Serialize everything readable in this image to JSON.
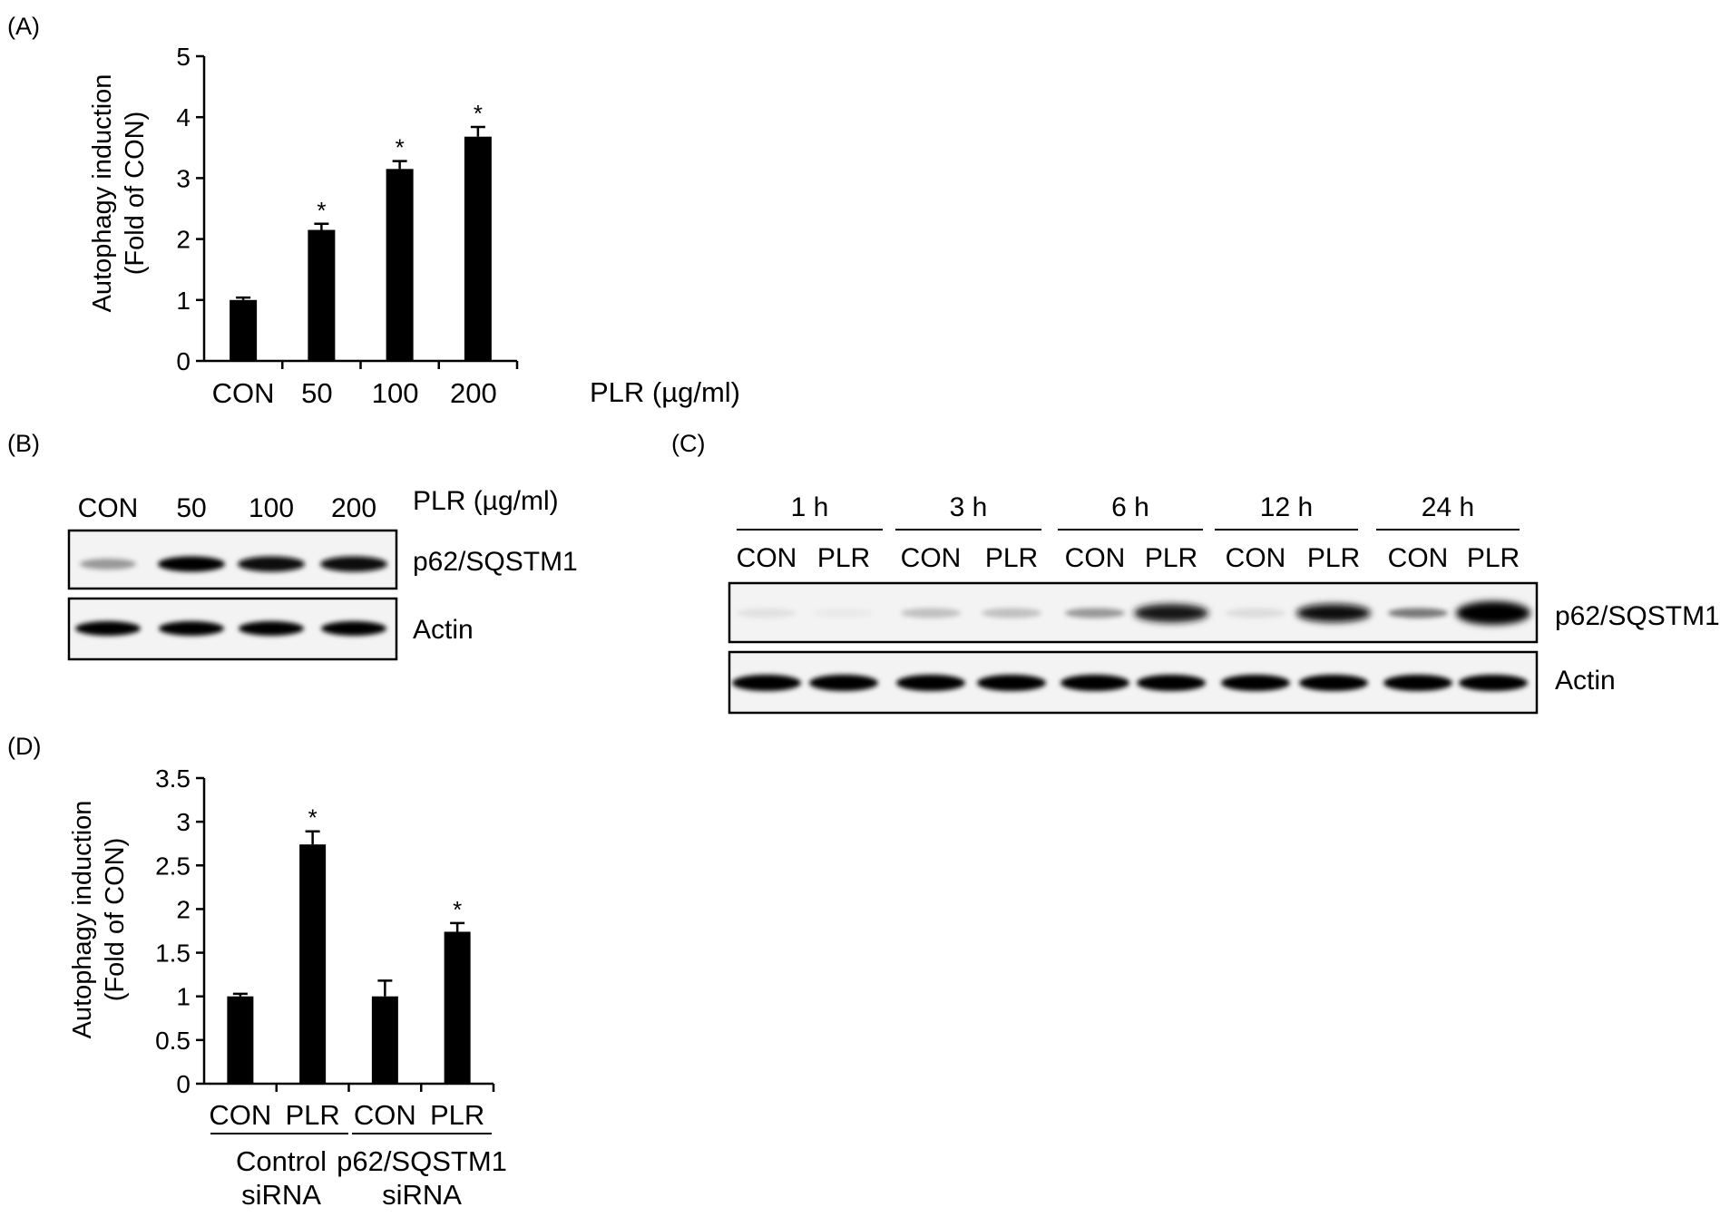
{
  "panels": {
    "A": "(A)",
    "B": "(B)",
    "C": "(C)",
    "D": "(D)"
  },
  "chart_data": [
    {
      "panel": "A",
      "type": "bar",
      "categories": [
        "CON",
        "50",
        "100",
        "200"
      ],
      "values": [
        1.0,
        2.15,
        3.15,
        3.68
      ],
      "errors": [
        0.04,
        0.1,
        0.13,
        0.16
      ],
      "significance": [
        "",
        "*",
        "*",
        "*"
      ],
      "xlabel": "PLR (µg/ml)",
      "ylabel_line1": "Autophagy induction",
      "ylabel_line2": "(Fold of CON)",
      "ylim": [
        0,
        5
      ],
      "yticks": [
        "0",
        "1",
        "2",
        "3",
        "4",
        "5"
      ],
      "grid": false,
      "bar_color": "#000000"
    },
    {
      "panel": "D",
      "type": "bar",
      "categories": [
        "CON",
        "PLR",
        "CON",
        "PLR"
      ],
      "groups": [
        "Control siRNA",
        "p62/SQSTM1 siRNA"
      ],
      "group_lines": [
        [
          "Control",
          "siRNA"
        ],
        [
          "p62/SQSTM1",
          "siRNA"
        ]
      ],
      "values": [
        1.0,
        2.74,
        1.0,
        1.74
      ],
      "errors": [
        0.03,
        0.15,
        0.18,
        0.1
      ],
      "significance": [
        "",
        "*",
        "",
        "*"
      ],
      "ylabel_line1": "Autophagy induction",
      "ylabel_line2": "(Fold of CON)",
      "ylim": [
        0,
        3.5
      ],
      "yticks": [
        "0",
        "0.5",
        "1",
        "1.5",
        "2",
        "2.5",
        "3",
        "3.5"
      ],
      "grid": false,
      "bar_color": "#000000"
    }
  ],
  "blot_B": {
    "lanes": [
      "CON",
      "50",
      "100",
      "200"
    ],
    "treatment": "PLR (µg/ml)",
    "rows": [
      {
        "label": "p62/SQSTM1",
        "intensities": [
          0.45,
          1.0,
          0.95,
          0.95
        ]
      },
      {
        "label": "Actin",
        "intensities": [
          1.0,
          1.0,
          1.0,
          1.0
        ]
      }
    ]
  },
  "blot_C": {
    "timepoints": [
      "1 h",
      "3 h",
      "6 h",
      "12 h",
      "24 h"
    ],
    "lanes": [
      "CON",
      "PLR",
      "CON",
      "PLR",
      "CON",
      "PLR",
      "CON",
      "PLR",
      "CON",
      "PLR"
    ],
    "rows": [
      {
        "label": "p62/SQSTM1",
        "intensities": [
          0.12,
          0.06,
          0.3,
          0.3,
          0.45,
          0.9,
          0.15,
          0.95,
          0.55,
          1.0
        ]
      },
      {
        "label": "Actin",
        "intensities": [
          1.0,
          1.0,
          1.0,
          1.0,
          1.0,
          1.0,
          1.0,
          1.0,
          1.0,
          1.0
        ]
      }
    ]
  }
}
